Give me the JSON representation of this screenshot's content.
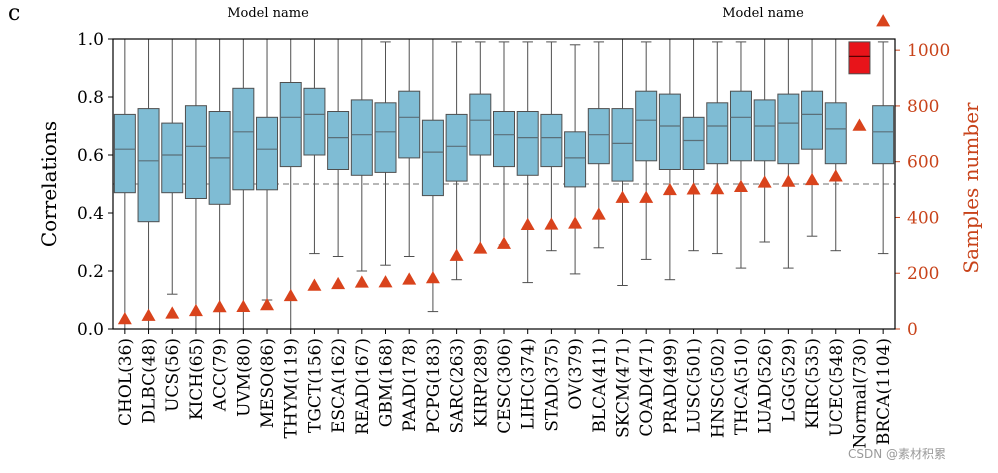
{
  "panel_label": "c",
  "top_captions": [
    "Model name",
    "Model name"
  ],
  "watermark": "CSDN @素材积累",
  "colors": {
    "box_fill": "#7fbcd4",
    "box_edge": "#4f4f4f",
    "highlight_box": "#e8141a",
    "marker": "#d9431c",
    "right_axis": "#c8431a",
    "reference_line": "#8c8c8c"
  },
  "chart_data": {
    "type": "box",
    "xlabel": "",
    "ylabel": "Correlations",
    "y2label": "Samples number",
    "ylim": [
      0,
      1.0
    ],
    "y2lim": [
      0,
      1040
    ],
    "yticks": [
      0.0,
      0.2,
      0.4,
      0.6,
      0.8,
      1.0
    ],
    "ytick_labels": [
      "0.0",
      "0.2",
      "0.4",
      "0.6",
      "0.8",
      "1.0"
    ],
    "y2ticks": [
      0,
      200,
      400,
      600,
      800,
      1000
    ],
    "y2tick_labels": [
      "0",
      "200",
      "400",
      "600",
      "800",
      "1000"
    ],
    "reference_line_y": 0.5,
    "categories": [
      "CHOL(36)",
      "DLBC(48)",
      "UCS(56)",
      "KICH(65)",
      "ACC(79)",
      "UVM(80)",
      "MESO(86)",
      "THYM(119)",
      "TGCT(156)",
      "ESCA(162)",
      "READ(167)",
      "GBM(168)",
      "PAAD(178)",
      "PCPG(183)",
      "SARC(263)",
      "KIRP(289)",
      "CESC(306)",
      "LIHC(374)",
      "STAD(375)",
      "OV(379)",
      "BLCA(411)",
      "SKCM(471)",
      "COAD(471)",
      "PRAD(499)",
      "LUSC(501)",
      "HNSC(502)",
      "THCA(510)",
      "LUAD(526)",
      "LGG(529)",
      "KIRC(535)",
      "UCEC(548)",
      "Normal(730)",
      "BRCA(1104)"
    ],
    "box_series": {
      "name": "Correlations",
      "whisker_low": [
        0.0,
        0.0,
        0.12,
        0.0,
        0.0,
        0.0,
        0.1,
        0.0,
        0.26,
        0.25,
        0.2,
        0.22,
        0.25,
        0.06,
        0.17,
        0.27,
        0.29,
        0.16,
        0.27,
        0.19,
        0.28,
        0.15,
        0.24,
        0.17,
        0.27,
        0.26,
        0.21,
        0.3,
        0.21,
        0.32,
        0.27,
        0.88,
        0.26
      ],
      "q1": [
        0.47,
        0.37,
        0.47,
        0.45,
        0.43,
        0.48,
        0.48,
        0.56,
        0.6,
        0.55,
        0.53,
        0.54,
        0.59,
        0.46,
        0.51,
        0.6,
        0.56,
        0.53,
        0.56,
        0.49,
        0.57,
        0.51,
        0.58,
        0.55,
        0.55,
        0.57,
        0.58,
        0.58,
        0.57,
        0.62,
        0.57,
        0.88,
        0.57
      ],
      "median": [
        0.62,
        0.58,
        0.6,
        0.63,
        0.59,
        0.68,
        0.62,
        0.73,
        0.74,
        0.66,
        0.67,
        0.68,
        0.73,
        0.61,
        0.63,
        0.72,
        0.67,
        0.66,
        0.66,
        0.59,
        0.67,
        0.64,
        0.72,
        0.7,
        0.65,
        0.7,
        0.73,
        0.7,
        0.71,
        0.74,
        0.69,
        0.94,
        0.68
      ],
      "q3": [
        0.74,
        0.76,
        0.71,
        0.77,
        0.75,
        0.83,
        0.73,
        0.85,
        0.83,
        0.75,
        0.79,
        0.78,
        0.82,
        0.72,
        0.74,
        0.81,
        0.75,
        0.75,
        0.74,
        0.68,
        0.76,
        0.76,
        0.82,
        0.81,
        0.73,
        0.78,
        0.82,
        0.79,
        0.81,
        0.82,
        0.78,
        0.99,
        0.77
      ],
      "whisker_high": [
        1.0,
        1.0,
        1.0,
        1.0,
        1.0,
        1.0,
        1.0,
        1.0,
        1.0,
        1.0,
        1.0,
        0.99,
        1.0,
        1.0,
        0.99,
        0.99,
        0.99,
        0.99,
        0.99,
        0.98,
        0.99,
        1.0,
        0.99,
        1.0,
        1.0,
        0.99,
        0.99,
        1.0,
        1.0,
        1.0,
        1.0,
        0.99,
        0.99
      ]
    },
    "marker_series": {
      "name": "Samples number",
      "axis": "right",
      "marker": "triangle",
      "values": [
        36,
        48,
        56,
        65,
        79,
        80,
        86,
        119,
        156,
        162,
        167,
        168,
        178,
        183,
        263,
        289,
        306,
        374,
        375,
        379,
        411,
        471,
        471,
        499,
        501,
        502,
        510,
        526,
        529,
        535,
        548,
        730,
        1104
      ]
    },
    "highlight_category": "Normal(730)"
  }
}
